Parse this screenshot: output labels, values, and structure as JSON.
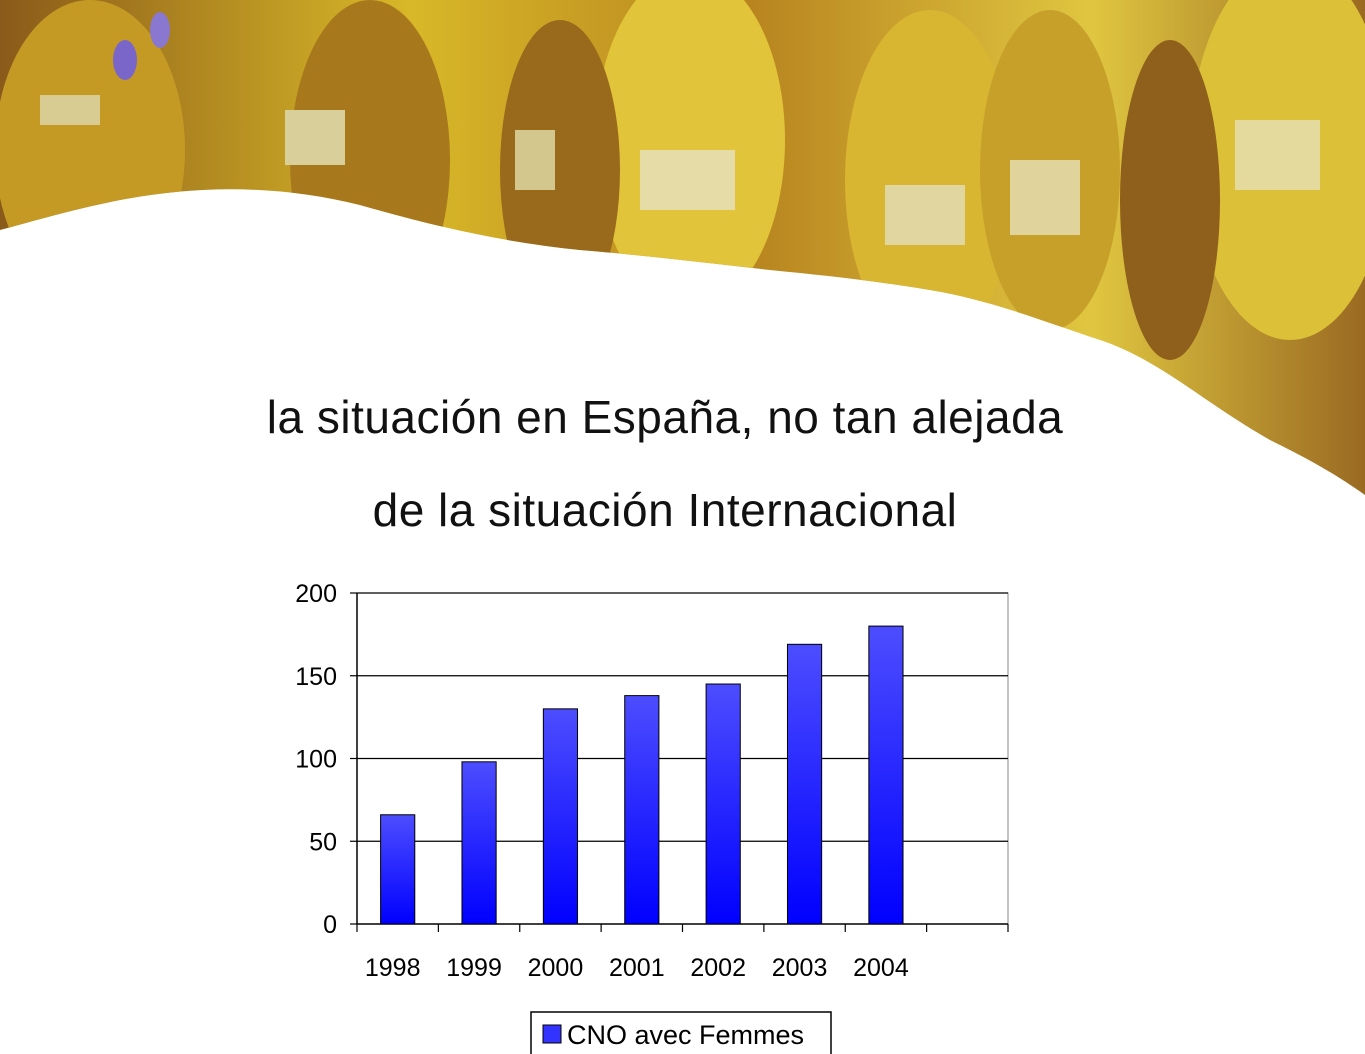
{
  "slide": {
    "title_line_1": "la situación en España, no tan alejada",
    "title_line_2": "de la situación Internacional"
  },
  "banner": {
    "description_icon": "runners-photo-banner",
    "tint": "#c9a11a"
  },
  "chart_data": {
    "type": "bar",
    "categories": [
      "1998",
      "1999",
      "2000",
      "2001",
      "2002",
      "2003",
      "2004",
      ""
    ],
    "series": [
      {
        "name": "CNO avec Femmes",
        "values": [
          66,
          98,
          130,
          138,
          145,
          169,
          180,
          null
        ],
        "color": "#3333ff"
      }
    ],
    "ylim": [
      0,
      200
    ],
    "yticks": [
      0,
      50,
      100,
      150,
      200
    ],
    "grid": true,
    "legend": "bottom-center"
  }
}
